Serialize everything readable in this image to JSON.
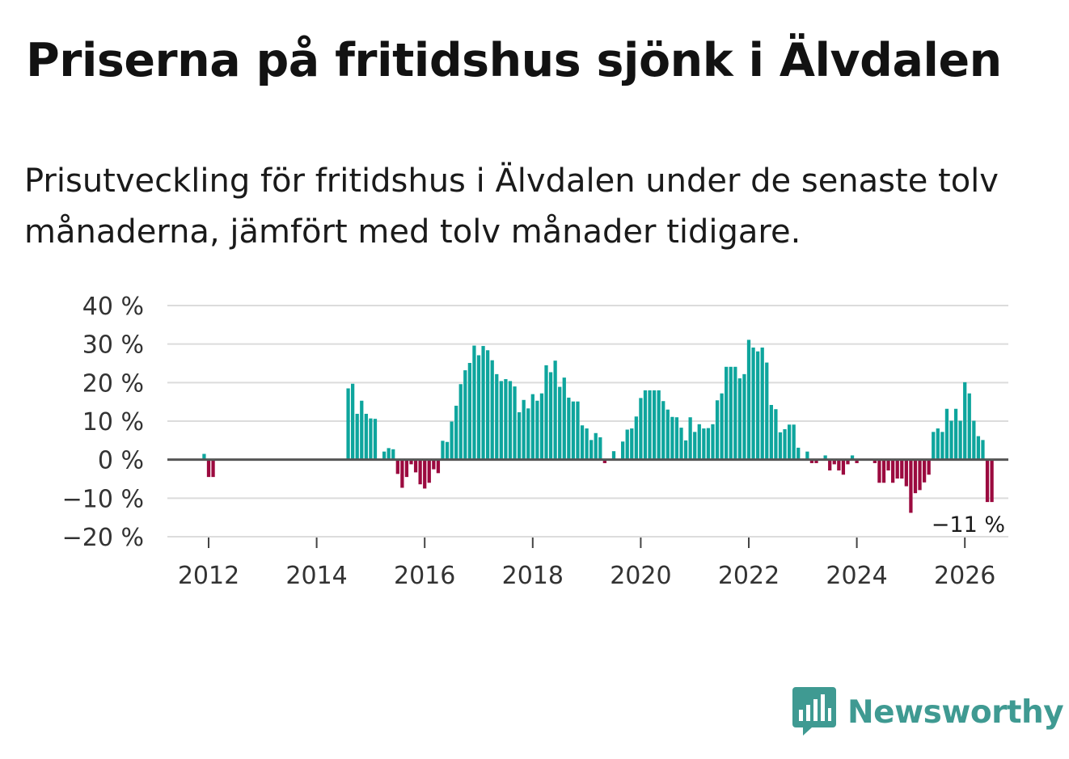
{
  "title": "Priserna på fritidshus sjönk i Älvdalen",
  "subtitle": "Prisutveckling för fritidshus i Älvdalen under de senaste tolv månaderna, jämfört med tolv månader tidigare.",
  "logo": {
    "text": "Newsworthy",
    "color": "#3f9a92",
    "icon": "bar-chart-speech-bubble-icon"
  },
  "chart_data": {
    "type": "bar",
    "ylim": [
      -20,
      40
    ],
    "yticks": [
      40,
      30,
      20,
      10,
      0,
      -10,
      -20
    ],
    "ytick_labels": [
      "40 %",
      "30 %",
      "20 %",
      "10 %",
      "0 %",
      "−10 %",
      "−20 %"
    ],
    "xticks": [
      2012,
      2014,
      2016,
      2018,
      2020,
      2022,
      2024,
      2026
    ],
    "xtick_labels": [
      "2012",
      "2014",
      "2016",
      "2018",
      "2020",
      "2022",
      "2024",
      "2026"
    ],
    "grid": true,
    "colors": {
      "positive": "#0ea59d",
      "negative": "#9b0a3f",
      "zero_line": "#555555",
      "grid": "#dcdcdc"
    },
    "end_label": "−11 %",
    "series": [
      {
        "start_date": "2011-12",
        "frequency": "monthly",
        "values": [
          1.5,
          -4.5,
          -4.5,
          0,
          0,
          0,
          0,
          0,
          0,
          0,
          0,
          0,
          0,
          0,
          0,
          0,
          0,
          0,
          0,
          0,
          0,
          0,
          0,
          0,
          0,
          0,
          0,
          0,
          0,
          0,
          0,
          0,
          18.5,
          19.7,
          11.9,
          15.3,
          11.9,
          10.7,
          10.6,
          0,
          2.1,
          3,
          2.7,
          -3.7,
          -7.3,
          -4.5,
          -1.2,
          -3.3,
          -6.4,
          -7.5,
          -6,
          -2.5,
          -3.5,
          4.9,
          4.6,
          9.9,
          14,
          19.6,
          23.2,
          25.1,
          29.6,
          27.1,
          29.5,
          28.4,
          25.8,
          22.2,
          20.4,
          20.9,
          20.4,
          19,
          12.3,
          15.5,
          13.3,
          17,
          15.3,
          17.2,
          24.5,
          22.7,
          25.7,
          18.9,
          21.3,
          16.1,
          15.1,
          15.1,
          8.9,
          8.1,
          5.1,
          6.9,
          5.8,
          -0.9,
          0,
          2.2,
          0,
          4.7,
          7.8,
          8.1,
          11.2,
          16,
          18,
          18,
          18,
          18,
          15.2,
          13,
          11.1,
          11,
          8.3,
          5,
          11,
          7.2,
          9.2,
          8.1,
          8.2,
          9.2,
          15.4,
          17.2,
          24.1,
          24.1,
          24.1,
          21.1,
          22.2,
          31.1,
          29.1,
          28.1,
          29.1,
          25.2,
          14.2,
          13.1,
          7.1,
          7.9,
          9.1,
          9.1,
          3.1,
          0,
          2.1,
          -0.9,
          -0.9,
          0,
          1.1,
          -2.8,
          -1.2,
          -2.8,
          -3.9,
          -1.2,
          1.1,
          -0.9,
          0,
          0,
          0,
          -0.9,
          -6,
          -6,
          -2.8,
          -6,
          -4.9,
          -4.9,
          -6.9,
          -13.8,
          -8.7,
          -7.9,
          -5.9,
          -3.9,
          7.2,
          8.1,
          7.2,
          13.2,
          10.1,
          13.2,
          10.1,
          20.1,
          17.2,
          10.1,
          6.1,
          5.1,
          -11,
          -11
        ]
      }
    ]
  }
}
